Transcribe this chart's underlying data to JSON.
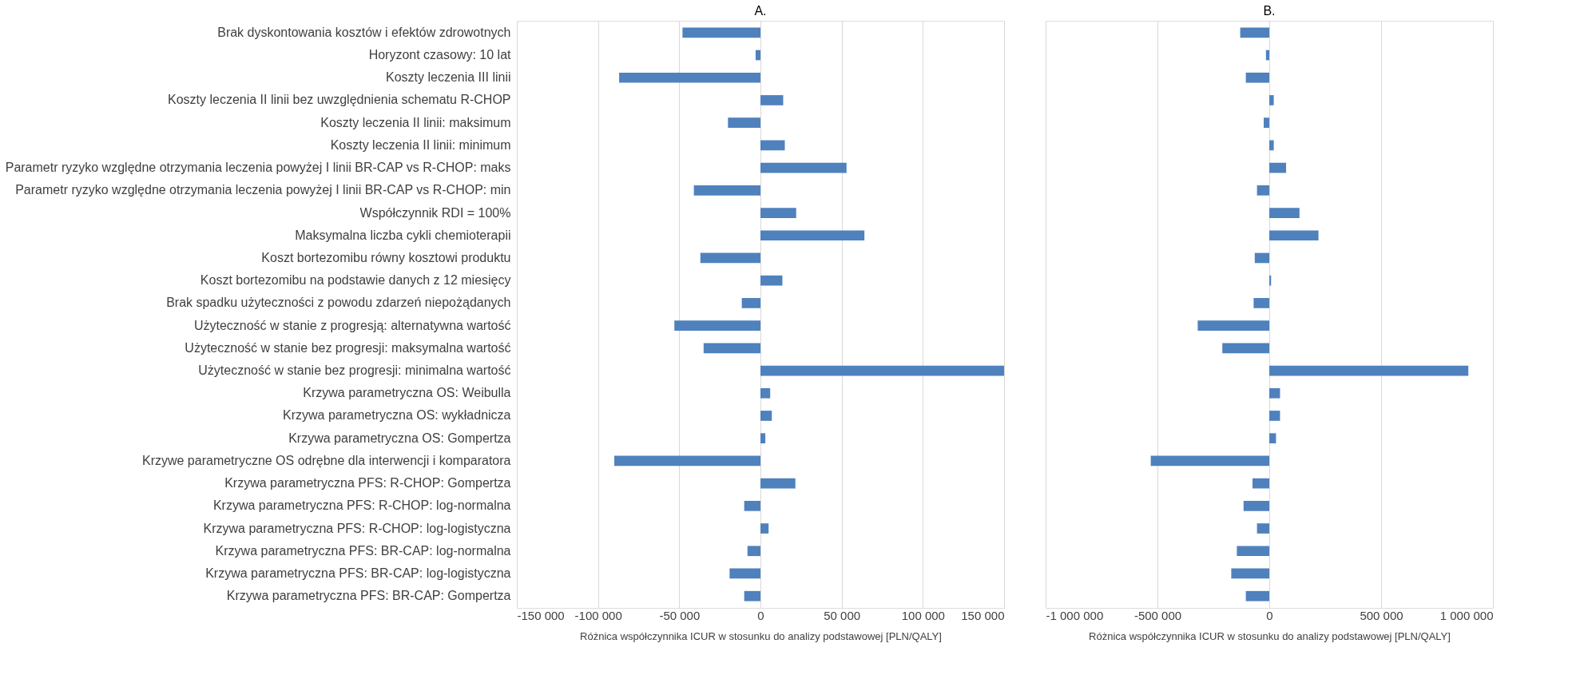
{
  "chart_data": [
    {
      "type": "bar",
      "title": "A.",
      "orientation": "horizontal",
      "color": "#4f81bd",
      "grid": "x",
      "xlabel": "Różnica współczynnika ICUR w stosunku do analizy podstawowej [PLN/QALY]",
      "categories": [
        "Brak dyskontowania kosztów i efektów zdrowotnych",
        "Horyzont czasowy: 10 lat",
        "Koszty leczenia III linii",
        "Koszty leczenia II linii bez uwzględnienia schematu R-CHOP",
        "Koszty leczenia II linii: maksimum",
        "Koszty leczenia II linii: minimum",
        "Parametr ryzyko względne otrzymania leczenia powyżej I linii BR-CAP vs R-CHOP: maks",
        "Parametr ryzyko względne otrzymania leczenia powyżej I linii BR-CAP vs R-CHOP: min",
        "Współczynnik RDI = 100%",
        "Maksymalna liczba cykli chemioterapii",
        "Koszt bortezomibu równy kosztowi produktu",
        "Koszt bortezomibu na podstawie danych z 12 miesięcy",
        "Brak spadku użyteczności z powodu zdarzeń niepożądanych",
        "Użyteczność w stanie z progresją: alternatywna wartość",
        "Użyteczność w stanie bez progresji: maksymalna wartość",
        "Użyteczność w stanie bez progresji: minimalna wartość",
        "Krzywa parametryczna OS: Weibulla",
        "Krzywa parametryczna OS: wykładnicza",
        "Krzywa parametryczna OS: Gompertza",
        "Krzywe parametryczne OS odrębne dla interwencji i komparatora",
        "Krzywa parametryczna PFS: R-CHOP: Gompertza",
        "Krzywa parametryczna PFS: R-CHOP: log-normalna",
        "Krzywa parametryczna PFS: R-CHOP: log-logistyczna",
        "Krzywa parametryczna PFS: BR-CAP: log-normalna",
        "Krzywa parametryczna PFS: BR-CAP: log-logistyczna",
        "Krzywa parametryczna PFS: BR-CAP: Gompertza"
      ],
      "values": [
        -48000,
        -3000,
        -87000,
        14000,
        -20000,
        15000,
        53000,
        -41000,
        22000,
        64000,
        -37000,
        13500,
        -11500,
        -53000,
        -35000,
        150000,
        6000,
        7000,
        3000,
        -90000,
        21500,
        -10000,
        5000,
        -8000,
        -19000,
        -10000
      ],
      "xlim": [
        -150000,
        150000
      ],
      "xticks": [
        {
          "value": -150000,
          "label": "-150 000"
        },
        {
          "value": -100000,
          "label": "-100 000"
        },
        {
          "value": -50000,
          "label": "-50 000"
        },
        0,
        {
          "value": 50000,
          "label": "50 000"
        },
        {
          "value": 100000,
          "label": "100 000"
        },
        {
          "value": 150000,
          "label": "150 000"
        }
      ]
    },
    {
      "type": "bar",
      "title": "B.",
      "orientation": "horizontal",
      "color": "#4f81bd",
      "grid": "x",
      "tick_labels": "x",
      "xlabel": "Różnica współczynnika ICUR w stosunku do analizy podstawowej [PLN/QALY]",
      "categories": [
        null,
        null,
        null,
        null,
        null,
        null,
        null,
        null,
        null,
        null,
        null,
        null,
        null,
        null,
        null,
        null,
        null,
        null,
        null,
        null,
        null,
        null,
        null,
        null,
        null,
        null
      ],
      "values": [
        -130000,
        -15000,
        -105000,
        20000,
        -25000,
        20000,
        75000,
        -55000,
        135000,
        220000,
        -65000,
        8000,
        -70000,
        -320000,
        -210000,
        890000,
        48000,
        48000,
        30000,
        -530000,
        -75000,
        -115000,
        -55000,
        -145000,
        -170000,
        -105000
      ],
      "xlim": [
        -1000000,
        1000000
      ],
      "xticks": [
        {
          "value": -1000000,
          "label": "-1 000 000"
        },
        {
          "value": -500000,
          "label": "-500 000"
        },
        0,
        {
          "value": 500000,
          "label": "500 000"
        },
        {
          "value": 1000000,
          "label": "1 000 000"
        }
      ]
    }
  ]
}
